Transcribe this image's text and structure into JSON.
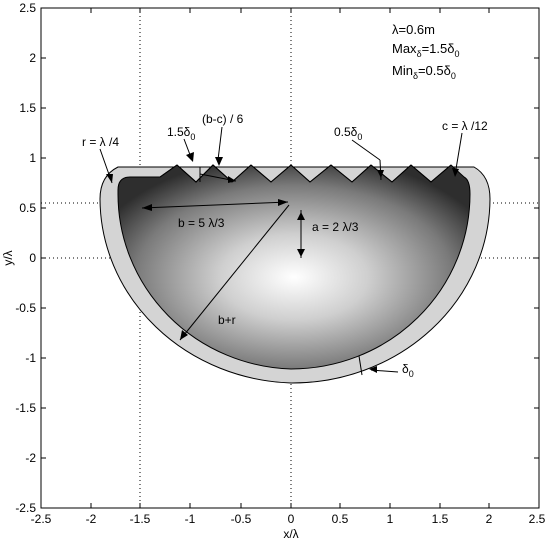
{
  "axes": {
    "xlabel": "x/λ",
    "ylabel": "y/λ",
    "xlim": [
      -2.5,
      2.5
    ],
    "ylim": [
      -2.5,
      2.5
    ],
    "xticks": [
      "-2.5",
      "-2",
      "-1.5",
      "-1",
      "-0.5",
      "0",
      "0.5",
      "1",
      "1.5",
      "2",
      "2.5"
    ],
    "yticks": [
      "2.5",
      "2",
      "1.5",
      "1",
      "0.5",
      "0",
      "-0.5",
      "-1",
      "-1.5",
      "-2",
      "-2.5"
    ],
    "grid_lines": {
      "x": [
        -1.5,
        0
      ],
      "y": [
        0.55,
        0
      ]
    }
  },
  "params": {
    "lambda": {
      "prefix": "λ=0.6m"
    },
    "max": {
      "prefix": "Max",
      "sub1": "δ",
      "mid": "=1.5δ",
      "sub2": "0"
    },
    "min": {
      "prefix": "Min",
      "sub1": "δ",
      "mid": "=0.5δ",
      "sub2": "0"
    }
  },
  "annotations": {
    "r": "r = λ /4",
    "max_delta": {
      "main": "1.5δ",
      "sub": "0"
    },
    "bc6": "(b-c) / 6",
    "min_delta": {
      "main": "0.5δ",
      "sub": "0"
    },
    "c": "c = λ /12",
    "b": "b = 5 λ/3",
    "a": "a = 2 λ/3",
    "bpr": "b+r",
    "delta0": {
      "main": "δ",
      "sub": "0"
    }
  },
  "colors": {
    "outer_fill": "#d4d4d4",
    "inner_center": "#ffffff",
    "inner_edge": "#2e2e2e"
  }
}
